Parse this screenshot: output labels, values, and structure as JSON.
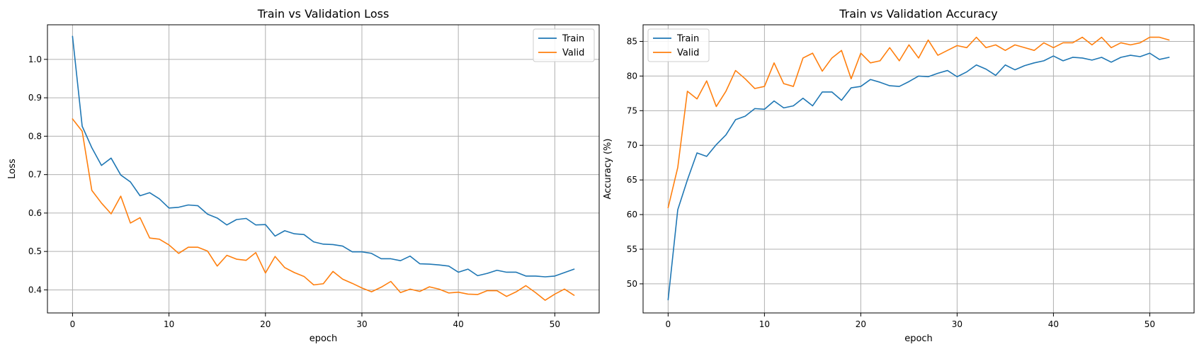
{
  "chart_data": [
    {
      "type": "line",
      "title": "Train vs Validation Loss",
      "xlabel": "epoch",
      "ylabel": "Loss",
      "xlim": [
        -2.6,
        54.6
      ],
      "ylim": [
        0.34,
        1.09
      ],
      "xticks": [
        0,
        10,
        20,
        30,
        40,
        50
      ],
      "yticks": [
        0.4,
        0.5,
        0.6,
        0.7,
        0.8,
        0.9,
        1.0
      ],
      "grid": true,
      "legend": "top-right",
      "series": [
        {
          "name": "Train",
          "color": "#1f77b4",
          "x": [
            0,
            1,
            2,
            3,
            4,
            5,
            6,
            7,
            8,
            9,
            10,
            11,
            12,
            13,
            14,
            15,
            16,
            17,
            18,
            19,
            20,
            21,
            22,
            23,
            24,
            25,
            26,
            27,
            28,
            29,
            30,
            31,
            32,
            33,
            34,
            35,
            36,
            37,
            38,
            39,
            40,
            41,
            42,
            43,
            44,
            45,
            46,
            47,
            48,
            49,
            50,
            51,
            52
          ],
          "values": [
            1.06,
            0.826,
            0.77,
            0.724,
            0.743,
            0.699,
            0.681,
            0.645,
            0.653,
            0.637,
            0.613,
            0.615,
            0.621,
            0.619,
            0.597,
            0.587,
            0.569,
            0.583,
            0.586,
            0.569,
            0.57,
            0.54,
            0.554,
            0.546,
            0.544,
            0.525,
            0.519,
            0.518,
            0.514,
            0.499,
            0.499,
            0.495,
            0.481,
            0.481,
            0.476,
            0.488,
            0.468,
            0.467,
            0.465,
            0.462,
            0.446,
            0.454,
            0.437,
            0.443,
            0.451,
            0.446,
            0.446,
            0.436,
            0.436,
            0.434,
            0.436,
            0.445,
            0.454
          ]
        },
        {
          "name": "Valid",
          "color": "#ff7f0e",
          "x": [
            0,
            1,
            2,
            3,
            4,
            5,
            6,
            7,
            8,
            9,
            10,
            11,
            12,
            13,
            14,
            15,
            16,
            17,
            18,
            19,
            20,
            21,
            22,
            23,
            24,
            25,
            26,
            27,
            28,
            29,
            30,
            31,
            32,
            33,
            34,
            35,
            36,
            37,
            38,
            39,
            40,
            41,
            42,
            43,
            44,
            45,
            46,
            47,
            48,
            49,
            50,
            51,
            52
          ],
          "values": [
            0.845,
            0.813,
            0.659,
            0.626,
            0.598,
            0.644,
            0.574,
            0.588,
            0.535,
            0.532,
            0.517,
            0.495,
            0.511,
            0.511,
            0.501,
            0.462,
            0.49,
            0.48,
            0.477,
            0.497,
            0.444,
            0.487,
            0.458,
            0.445,
            0.435,
            0.413,
            0.416,
            0.448,
            0.428,
            0.417,
            0.405,
            0.395,
            0.407,
            0.422,
            0.393,
            0.402,
            0.396,
            0.408,
            0.402,
            0.392,
            0.394,
            0.389,
            0.388,
            0.398,
            0.398,
            0.383,
            0.395,
            0.411,
            0.393,
            0.373,
            0.389,
            0.402,
            0.386
          ]
        }
      ]
    },
    {
      "type": "line",
      "title": "Train vs Validation Accuracy",
      "xlabel": "epoch",
      "ylabel": "Accuracy (%)",
      "xlim": [
        -2.6,
        54.6
      ],
      "ylim": [
        45.8,
        87.4
      ],
      "xticks": [
        0,
        10,
        20,
        30,
        40,
        50
      ],
      "yticks": [
        50,
        55,
        60,
        65,
        70,
        75,
        80,
        85
      ],
      "grid": true,
      "legend": "top-left",
      "series": [
        {
          "name": "Train",
          "color": "#1f77b4",
          "x": [
            0,
            1,
            2,
            3,
            4,
            5,
            6,
            7,
            8,
            9,
            10,
            11,
            12,
            13,
            14,
            15,
            16,
            17,
            18,
            19,
            20,
            21,
            22,
            23,
            24,
            25,
            26,
            27,
            28,
            29,
            30,
            31,
            32,
            33,
            34,
            35,
            36,
            37,
            38,
            39,
            40,
            41,
            42,
            43,
            44,
            45,
            46,
            47,
            48,
            49,
            50,
            51,
            52
          ],
          "values": [
            47.7,
            60.7,
            65.0,
            68.9,
            68.4,
            70.1,
            71.5,
            73.7,
            74.2,
            75.3,
            75.2,
            76.4,
            75.4,
            75.7,
            76.8,
            75.7,
            77.7,
            77.7,
            76.5,
            78.3,
            78.5,
            79.5,
            79.1,
            78.6,
            78.5,
            79.2,
            80.0,
            79.9,
            80.4,
            80.8,
            79.9,
            80.6,
            81.6,
            81.0,
            80.1,
            81.6,
            80.9,
            81.5,
            81.9,
            82.2,
            82.9,
            82.2,
            82.7,
            82.6,
            82.3,
            82.7,
            82.0,
            82.7,
            83.0,
            82.8,
            83.3,
            82.4,
            82.7
          ]
        },
        {
          "name": "Valid",
          "color": "#ff7f0e",
          "x": [
            0,
            1,
            2,
            3,
            4,
            5,
            6,
            7,
            8,
            9,
            10,
            11,
            12,
            13,
            14,
            15,
            16,
            17,
            18,
            19,
            20,
            21,
            22,
            23,
            24,
            25,
            26,
            27,
            28,
            29,
            30,
            31,
            32,
            33,
            34,
            35,
            36,
            37,
            38,
            39,
            40,
            41,
            42,
            43,
            44,
            45,
            46,
            47,
            48,
            49,
            50,
            51,
            52
          ],
          "values": [
            61.0,
            66.8,
            77.8,
            76.7,
            79.3,
            75.6,
            77.8,
            80.8,
            79.6,
            78.2,
            78.5,
            81.9,
            78.9,
            78.5,
            82.6,
            83.3,
            80.7,
            82.6,
            83.7,
            79.6,
            83.3,
            81.9,
            82.2,
            84.1,
            82.2,
            84.5,
            82.6,
            85.2,
            83.0,
            83.7,
            84.4,
            84.1,
            85.6,
            84.1,
            84.5,
            83.7,
            84.5,
            84.1,
            83.7,
            84.8,
            84.1,
            84.8,
            84.8,
            85.6,
            84.5,
            85.6,
            84.1,
            84.8,
            84.5,
            84.8,
            85.6,
            85.6,
            85.2
          ]
        }
      ]
    }
  ]
}
